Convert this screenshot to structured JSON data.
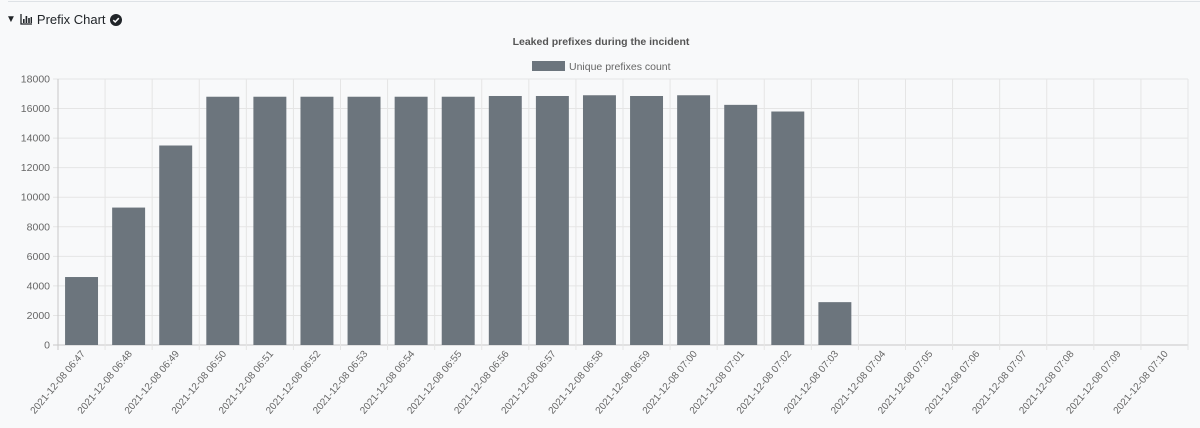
{
  "section": {
    "title": "Prefix Chart",
    "toggle_icon": "caret-down-icon",
    "chart_icon": "bar-chart-icon",
    "status_icon": "check-circle-icon"
  },
  "colors": {
    "bar": "#6c757d",
    "grid": "#e5e5e5",
    "text": "#666666",
    "title": "#555555"
  },
  "chart_data": {
    "type": "bar",
    "title": "Leaked prefixes during the incident",
    "legend_position": "top",
    "grid": true,
    "ylim": [
      0,
      18000
    ],
    "yticks": [
      0,
      2000,
      4000,
      6000,
      8000,
      10000,
      12000,
      14000,
      16000,
      18000
    ],
    "categories": [
      "2021-12-08 06:47",
      "2021-12-08 06:48",
      "2021-12-08 06:49",
      "2021-12-08 06:50",
      "2021-12-08 06:51",
      "2021-12-08 06:52",
      "2021-12-08 06:53",
      "2021-12-08 06:54",
      "2021-12-08 06:55",
      "2021-12-08 06:56",
      "2021-12-08 06:57",
      "2021-12-08 06:58",
      "2021-12-08 06:59",
      "2021-12-08 07:00",
      "2021-12-08 07:01",
      "2021-12-08 07:02",
      "2021-12-08 07:03",
      "2021-12-08 07:04",
      "2021-12-08 07:05",
      "2021-12-08 07:06",
      "2021-12-08 07:07",
      "2021-12-08 07:08",
      "2021-12-08 07:09",
      "2021-12-08 07:10"
    ],
    "series": [
      {
        "name": "Unique prefixes count",
        "values": [
          4600,
          9300,
          13500,
          16800,
          16800,
          16800,
          16800,
          16800,
          16800,
          16850,
          16850,
          16900,
          16850,
          16900,
          16250,
          15800,
          2900,
          0,
          0,
          0,
          0,
          0,
          0,
          0
        ]
      }
    ]
  }
}
